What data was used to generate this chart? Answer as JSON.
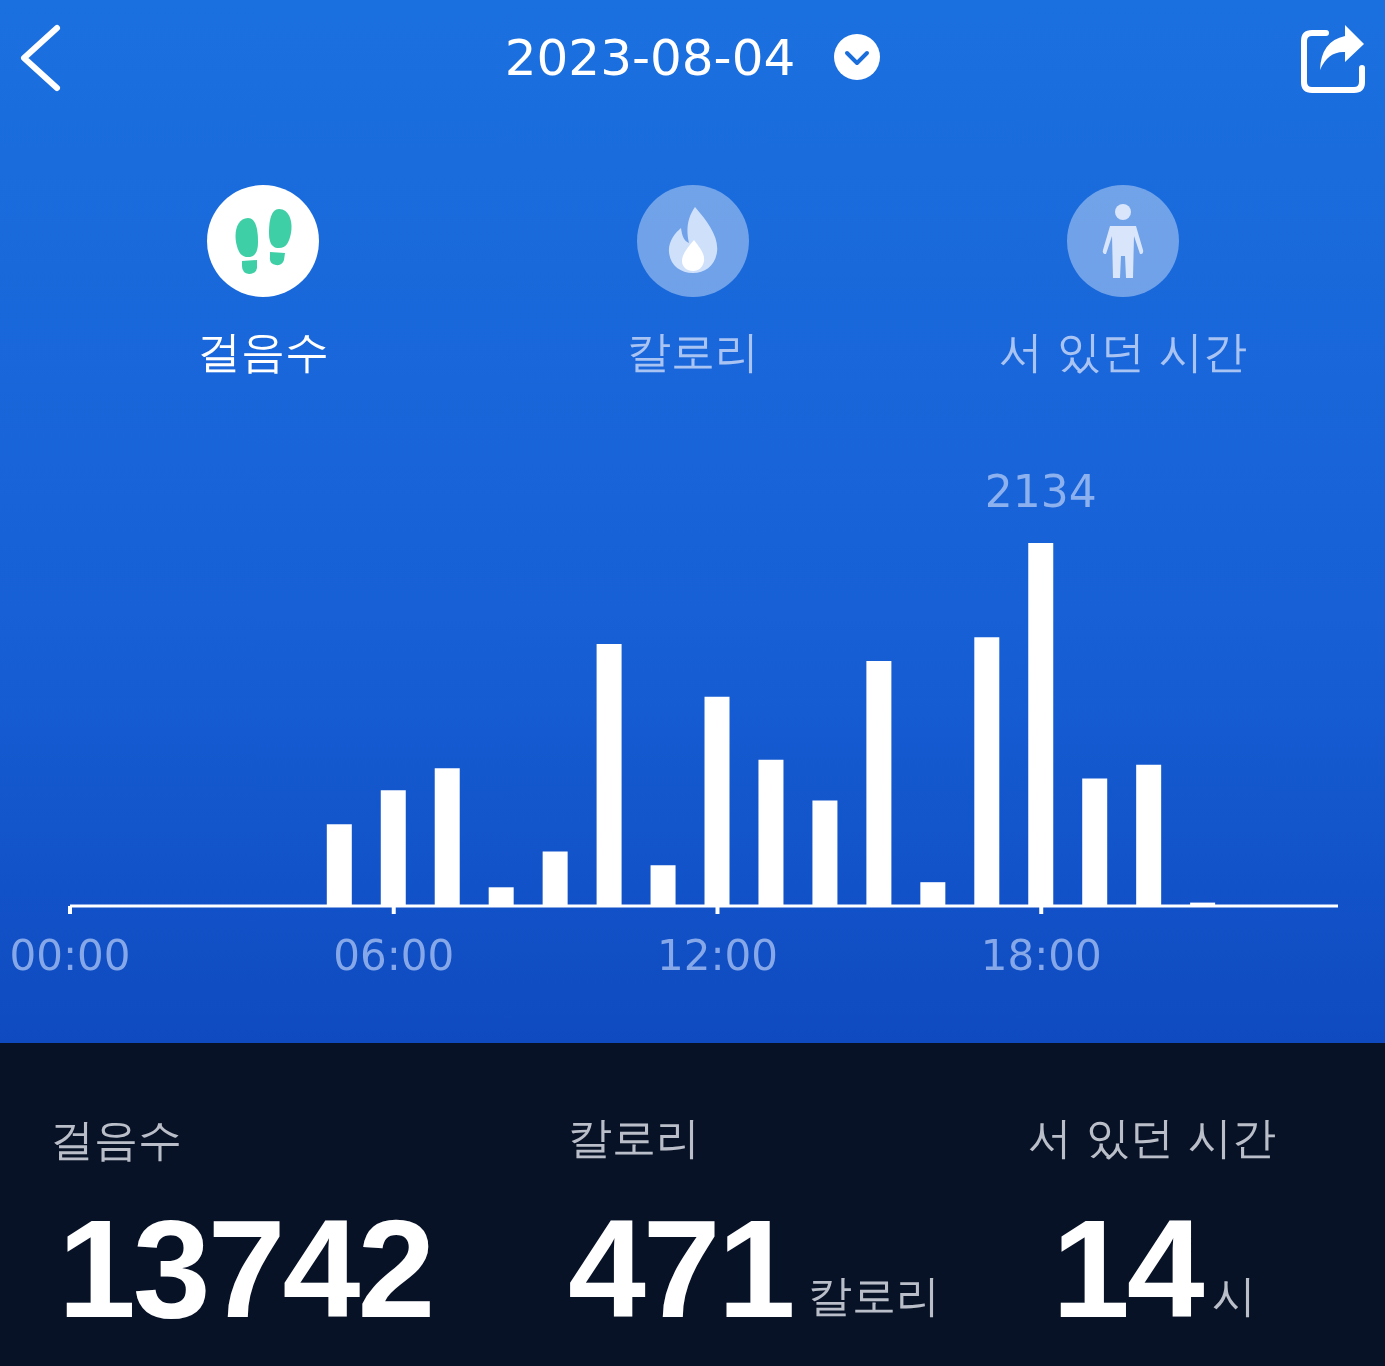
{
  "chart_data": {
    "type": "bar",
    "title": "2023-08-04",
    "x": [
      5,
      6,
      7,
      8,
      9,
      10,
      11,
      12,
      13,
      14,
      15,
      16,
      17,
      18,
      19,
      20,
      21
    ],
    "values": [
      480,
      680,
      810,
      110,
      320,
      1540,
      240,
      1230,
      860,
      620,
      1440,
      140,
      1580,
      2134,
      750,
      830,
      20
    ],
    "value_labels": [
      null,
      null,
      null,
      null,
      null,
      null,
      null,
      null,
      null,
      null,
      null,
      null,
      null,
      "2134",
      null,
      null,
      null
    ],
    "color": "#ffffff",
    "xlim": [
      0,
      23.5
    ],
    "xticks": [
      {
        "value": 0,
        "label": "00:00"
      },
      {
        "value": 6,
        "label": "06:00"
      },
      {
        "value": 12,
        "label": "12:00"
      },
      {
        "value": 18,
        "label": "18:00"
      }
    ],
    "tick_labels": "x",
    "grid": false,
    "annotations": [
      "걸음수",
      "칼로리",
      "서 있던 시간",
      "걸음수",
      "칼로리",
      "서 있던 시간",
      "13742",
      "471",
      "칼로리",
      "14",
      "시"
    ]
  }
}
